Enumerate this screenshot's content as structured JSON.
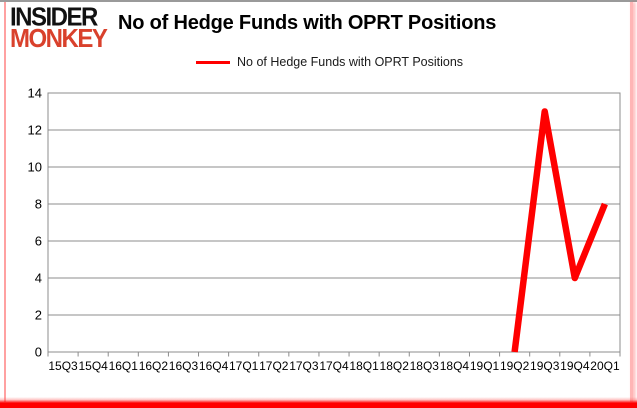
{
  "logo": {
    "line1": "INSIDER",
    "line2": "MONKEY"
  },
  "header": {
    "title": "No of Hedge Funds with OPRT Positions"
  },
  "legend": {
    "label": "No of Hedge Funds with OPRT Positions"
  },
  "colors": {
    "line": "#ff0000",
    "grid": "#8c8c8c",
    "axis_text": "#000000",
    "logo_black": "#111111",
    "logo_red": "#d9412c"
  },
  "chart_data": {
    "type": "line",
    "title": "No of Hedge Funds with OPRT Positions",
    "categories": [
      "15Q3",
      "15Q4",
      "16Q1",
      "16Q2",
      "16Q3",
      "16Q4",
      "17Q1",
      "17Q2",
      "17Q3",
      "17Q4",
      "18Q1",
      "18Q2",
      "18Q3",
      "18Q4",
      "19Q1",
      "19Q2",
      "19Q3",
      "19Q4",
      "20Q1"
    ],
    "series": [
      {
        "name": "No of Hedge Funds with OPRT Positions",
        "values": [
          null,
          null,
          null,
          null,
          null,
          null,
          null,
          null,
          null,
          null,
          null,
          null,
          null,
          null,
          null,
          0,
          13,
          4,
          8
        ]
      }
    ],
    "xlabel": "",
    "ylabel": "",
    "ylim": [
      0,
      14
    ],
    "ytick_step": 2,
    "grid": true,
    "legend_position": "top"
  }
}
